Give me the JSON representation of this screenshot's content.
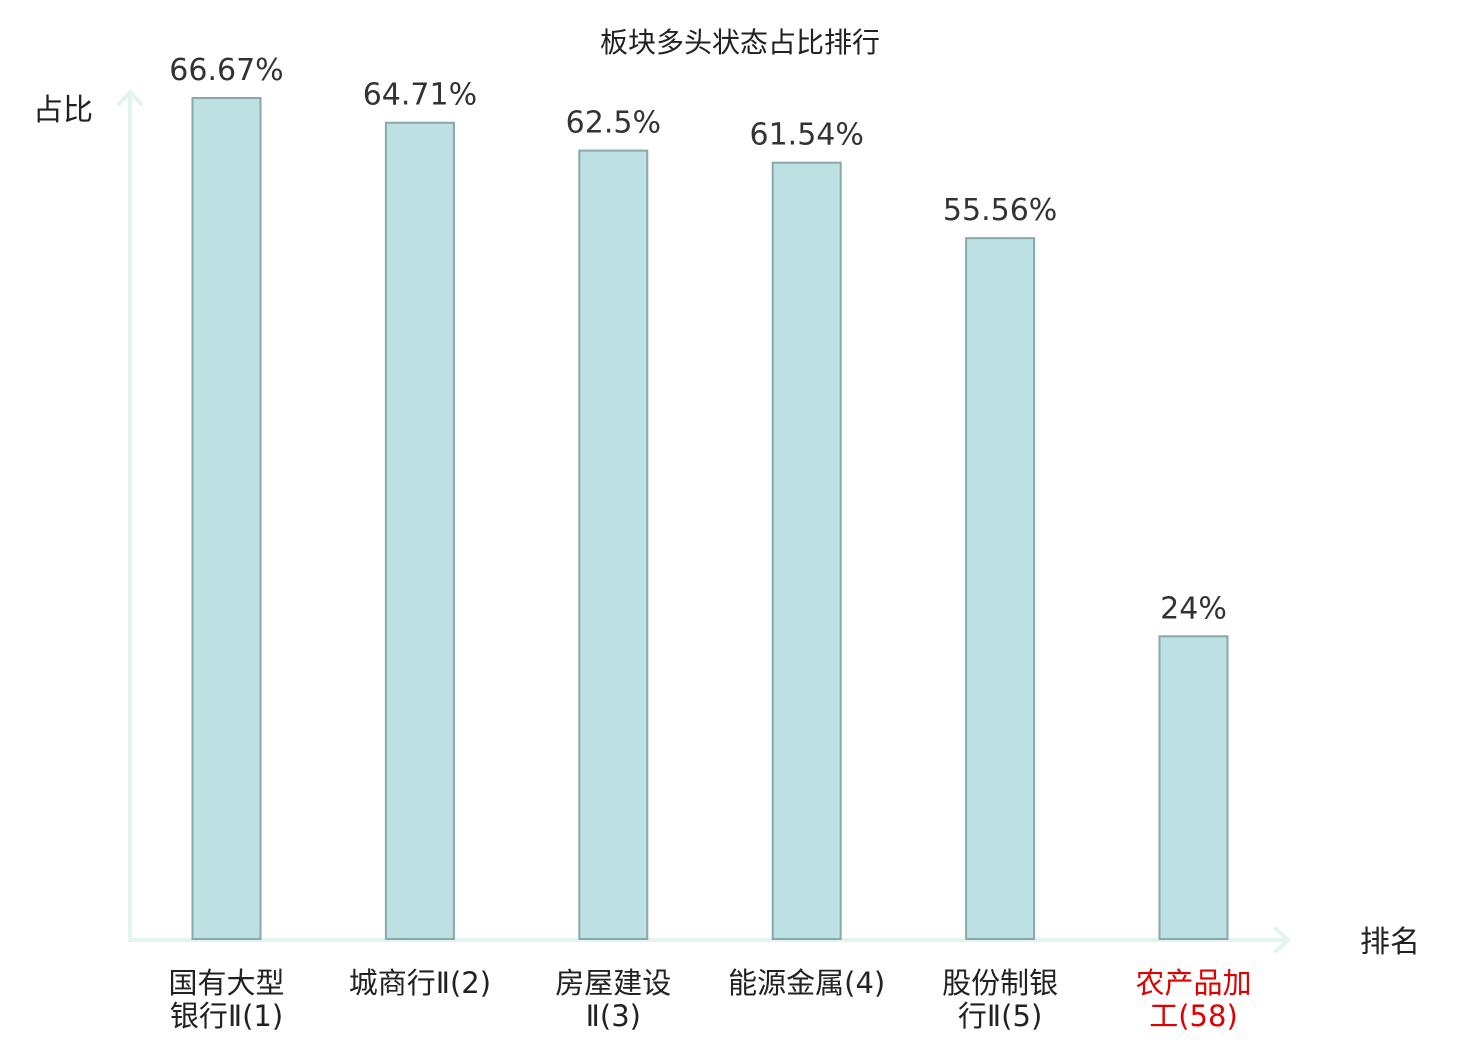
{
  "chart_data": {
    "type": "bar",
    "title": "板块多头状态占比排行",
    "ylabel": "占比",
    "xlabel": "排名",
    "ylim": [
      0,
      70
    ],
    "grid": false,
    "colors": {
      "bar_fill": "#bde0e3",
      "bar_stroke": "#8aa7a9",
      "axis": "#e2f4f1",
      "label_default": "#222222",
      "label_highlight": "#e00000"
    },
    "categories": [
      {
        "lines": [
          "国有大型",
          "银行Ⅱ(1)"
        ],
        "highlight": false
      },
      {
        "lines": [
          "城商行Ⅱ(2)"
        ],
        "highlight": false
      },
      {
        "lines": [
          "房屋建设",
          "Ⅱ(3)"
        ],
        "highlight": false
      },
      {
        "lines": [
          "能源金属(4)"
        ],
        "highlight": false
      },
      {
        "lines": [
          "股份制银",
          "行Ⅱ(5)"
        ],
        "highlight": false
      },
      {
        "lines": [
          "农产品加",
          "工(58)"
        ],
        "highlight": true
      }
    ],
    "values": [
      66.67,
      64.71,
      62.5,
      61.54,
      55.56,
      24
    ],
    "value_labels": [
      "66.67%",
      "64.71%",
      "62.5%",
      "61.54%",
      "55.56%",
      "24%"
    ]
  }
}
